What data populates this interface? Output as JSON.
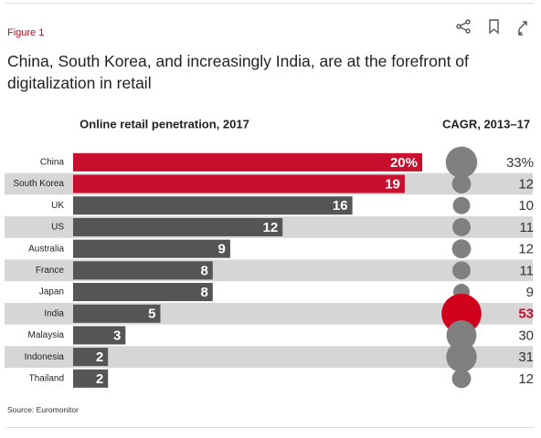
{
  "figure_label": "Figure 1",
  "title": "China, South Korea, and increasingly India, are at the forefront of digitalization in retail",
  "source": "Source: Euromonitor",
  "chart_data": {
    "type": "bar",
    "categories": [
      "China",
      "South Korea",
      "UK",
      "US",
      "Australia",
      "France",
      "Japan",
      "India",
      "Malaysia",
      "Indonesia",
      "Thailand"
    ],
    "series": [
      {
        "name": "Online retail penetration, 2017",
        "values": [
          20,
          19,
          16,
          12,
          9,
          8,
          8,
          5,
          3,
          2,
          2
        ],
        "value_labels": [
          "20%",
          "19",
          "16",
          "12",
          "9",
          "8",
          "8",
          "5",
          "3",
          "2",
          "2"
        ],
        "colors": [
          "#c8102e",
          "#c8102e",
          "#555555",
          "#555555",
          "#555555",
          "#555555",
          "#555555",
          "#555555",
          "#555555",
          "#555555",
          "#555555"
        ]
      },
      {
        "name": "CAGR, 2013–17",
        "type": "bubble",
        "values": [
          33,
          12,
          10,
          11,
          12,
          11,
          9,
          53,
          30,
          31,
          12
        ],
        "value_labels": [
          "33%",
          "12",
          "10",
          "11",
          "12",
          "11",
          "9",
          "53",
          "30",
          "31",
          "12"
        ],
        "colors": [
          "#808080",
          "#808080",
          "#808080",
          "#808080",
          "#808080",
          "#808080",
          "#808080",
          "#d0021b",
          "#808080",
          "#808080",
          "#808080"
        ],
        "label_colors": [
          "#333333",
          "#333333",
          "#333333",
          "#333333",
          "#333333",
          "#333333",
          "#333333",
          "#c8102e",
          "#333333",
          "#333333",
          "#333333"
        ]
      }
    ],
    "stripe_color": "#d6d6d6"
  }
}
